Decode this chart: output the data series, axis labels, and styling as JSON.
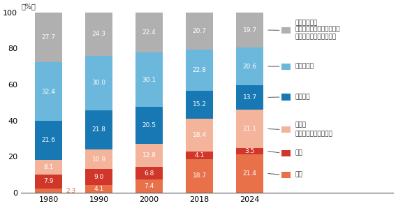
{
  "years": [
    "1980",
    "1990",
    "2000",
    "2018",
    "2024"
  ],
  "series": {
    "中国": [
      2.3,
      4.1,
      7.4,
      18.7,
      21.4
    ],
    "日本": [
      7.9,
      9.0,
      6.8,
      4.1,
      3.5
    ],
    "アジア": [
      8.1,
      10.9,
      12.8,
      18.4,
      21.1
    ],
    "アメリカ": [
      21.6,
      21.8,
      20.5,
      15.2,
      13.7
    ],
    "ヨーロッパ": [
      32.4,
      30.0,
      30.1,
      22.8,
      20.6
    ],
    "その他": [
      27.7,
      24.3,
      22.4,
      20.7,
      19.7
    ]
  },
  "colors": {
    "中国": "#E8714A",
    "日本": "#D0362A",
    "アジア": "#F4B49B",
    "アメリカ": "#1878B4",
    "ヨーロッパ": "#6BB8DC",
    "その他": "#B0B0B0"
  },
  "legend_labels": {
    "その他": [
      "その他の地域",
      "（アフリカ、中南米、中東",
      "や太平洋諸島地域など）"
    ],
    "ヨーロッパ": [
      "ヨーロッパ"
    ],
    "アメリカ": [
      "アメリカ"
    ],
    "アジア": [
      "アジア",
      "（日本・中国を除く）"
    ],
    "日本": [
      "日本"
    ],
    "中国": [
      "中国"
    ]
  },
  "legend_order": [
    "その他",
    "ヨーロッパ",
    "アメリカ",
    "アジア",
    "日本",
    "中国"
  ],
  "ylabel": "（%）",
  "ylim": [
    0,
    100
  ],
  "yticks": [
    0,
    20,
    40,
    60,
    80,
    100
  ],
  "bar_width": 0.55,
  "figure_bg": "#ffffff",
  "china_1980_outside": true
}
